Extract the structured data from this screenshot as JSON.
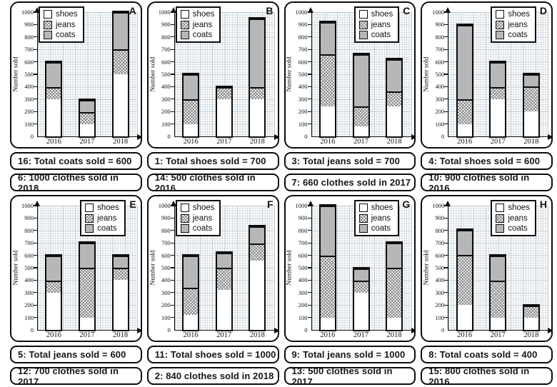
{
  "page": {
    "background": "#ffffff"
  },
  "colors": {
    "coats_fill": "#b7b7b7",
    "shoes_fill": "#ffffff",
    "hatch_line": "#464646",
    "bar_border": "#0d0d0d",
    "grid_minor": "#d8e0e6",
    "grid_major": "#bcc9d3"
  },
  "chart_data": [
    {
      "id": "A",
      "type": "bar",
      "stacked": true,
      "title": "",
      "ylabel": "Number sold",
      "ylim": [
        0,
        1000
      ],
      "ytick_step": 100,
      "grid": true,
      "legend_position": "top-left",
      "categories": [
        "2016",
        "2017",
        "2018"
      ],
      "series": [
        {
          "name": "shoes",
          "values": [
            300,
            100,
            500
          ]
        },
        {
          "name": "jeans",
          "values": [
            100,
            100,
            200
          ]
        },
        {
          "name": "coats",
          "values": [
            200,
            100,
            300
          ]
        }
      ],
      "statements": [
        "16: Total coats sold = 600",
        "6: 1000 clothes sold in 2018"
      ]
    },
    {
      "id": "B",
      "type": "bar",
      "stacked": true,
      "title": "",
      "ylabel": "Number sold",
      "ylim": [
        0,
        1000
      ],
      "ytick_step": 100,
      "grid": true,
      "legend_position": "top-left",
      "categories": [
        "2016",
        "2017",
        "2018"
      ],
      "series": [
        {
          "name": "shoes",
          "values": [
            100,
            300,
            300
          ]
        },
        {
          "name": "jeans",
          "values": [
            200,
            100,
            100
          ]
        },
        {
          "name": "coats",
          "values": [
            200,
            0,
            550
          ]
        }
      ],
      "statements": [
        "1: Total shoes sold = 700",
        "14: 500 clothes sold in 2016"
      ]
    },
    {
      "id": "C",
      "type": "bar",
      "stacked": true,
      "title": "",
      "ylabel": "Number sold",
      "ylim": [
        0,
        1000
      ],
      "ytick_step": 100,
      "grid": true,
      "legend_position": "top-right",
      "categories": [
        "2016",
        "2017",
        "2018"
      ],
      "series": [
        {
          "name": "shoes",
          "values": [
            240,
            80,
            240
          ]
        },
        {
          "name": "jeans",
          "values": [
            420,
            160,
            120
          ]
        },
        {
          "name": "coats",
          "values": [
            260,
            420,
            260
          ]
        }
      ],
      "statements": [
        "3: Total jeans sold = 700",
        "7: 660 clothes sold in 2017"
      ]
    },
    {
      "id": "D",
      "type": "bar",
      "stacked": true,
      "title": "",
      "ylabel": "Number sold",
      "ylim": [
        0,
        1000
      ],
      "ytick_step": 100,
      "grid": true,
      "legend_position": "top-right",
      "categories": [
        "2016",
        "2017",
        "2018"
      ],
      "series": [
        {
          "name": "shoes",
          "values": [
            100,
            300,
            200
          ]
        },
        {
          "name": "jeans",
          "values": [
            200,
            100,
            200
          ]
        },
        {
          "name": "coats",
          "values": [
            600,
            200,
            100
          ]
        }
      ],
      "statements": [
        "4: Total shoes sold = 600",
        "10: 900 clothes sold in 2016"
      ]
    },
    {
      "id": "E",
      "type": "bar",
      "stacked": true,
      "title": "",
      "ylabel": "Number sold",
      "ylim": [
        0,
        1000
      ],
      "ytick_step": 100,
      "grid": true,
      "legend_position": "top-right",
      "categories": [
        "2016",
        "2017",
        "2018"
      ],
      "series": [
        {
          "name": "shoes",
          "values": [
            300,
            100,
            400
          ]
        },
        {
          "name": "jeans",
          "values": [
            100,
            400,
            100
          ]
        },
        {
          "name": "coats",
          "values": [
            200,
            200,
            100
          ]
        }
      ],
      "statements": [
        "5: Total jeans sold = 600",
        "12: 700 clothes sold in 2017"
      ]
    },
    {
      "id": "F",
      "type": "bar",
      "stacked": true,
      "title": "",
      "ylabel": "Number sold",
      "ylim": [
        0,
        1000
      ],
      "ytick_step": 100,
      "grid": true,
      "legend_position": "top-left",
      "categories": [
        "2016",
        "2017",
        "2018"
      ],
      "series": [
        {
          "name": "shoes",
          "values": [
            120,
            320,
            560
          ]
        },
        {
          "name": "jeans",
          "values": [
            220,
            180,
            140
          ]
        },
        {
          "name": "coats",
          "values": [
            260,
            120,
            140
          ]
        }
      ],
      "statements": [
        "11: Total shoes sold = 1000",
        "2: 840 clothes sold in 2018"
      ]
    },
    {
      "id": "G",
      "type": "bar",
      "stacked": true,
      "title": "",
      "ylabel": "Number sold",
      "ylim": [
        0,
        1000
      ],
      "ytick_step": 100,
      "grid": true,
      "legend_position": "top-right",
      "categories": [
        "2016",
        "2017",
        "2018"
      ],
      "series": [
        {
          "name": "shoes",
          "values": [
            100,
            300,
            100
          ]
        },
        {
          "name": "jeans",
          "values": [
            500,
            100,
            400
          ]
        },
        {
          "name": "coats",
          "values": [
            400,
            100,
            200
          ]
        }
      ],
      "statements": [
        "9: Total jeans sold = 1000",
        "13: 500 clothes sold in 2017"
      ]
    },
    {
      "id": "H",
      "type": "bar",
      "stacked": true,
      "title": "",
      "ylabel": "Number sold",
      "ylim": [
        0,
        1000
      ],
      "ytick_step": 100,
      "grid": true,
      "legend_position": "top-right",
      "categories": [
        "2016",
        "2017",
        "2018"
      ],
      "series": [
        {
          "name": "shoes",
          "values": [
            200,
            100,
            100
          ]
        },
        {
          "name": "jeans",
          "values": [
            400,
            300,
            100
          ]
        },
        {
          "name": "coats",
          "values": [
            200,
            200,
            0
          ]
        }
      ],
      "statements": [
        "8: Total coats sold = 400",
        "15: 800 clothes sold in 2016"
      ]
    }
  ]
}
